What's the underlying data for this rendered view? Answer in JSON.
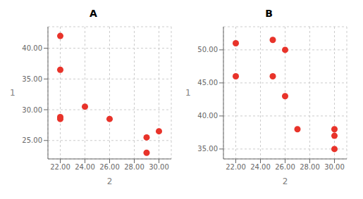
{
  "chart_data": [
    {
      "type": "scatter",
      "title": "A",
      "x": [
        22,
        22,
        22,
        22,
        24,
        26,
        29,
        29,
        30
      ],
      "values": [
        42.0,
        36.5,
        28.8,
        28.5,
        30.5,
        28.5,
        25.5,
        23.0,
        26.5
      ],
      "xlim": [
        21.0,
        31.0
      ],
      "ylim": [
        22.0,
        43.5
      ],
      "xticks": [
        {
          "value": 22,
          "label": "22.00"
        },
        {
          "value": 24,
          "label": "24.00"
        },
        {
          "value": 26,
          "label": "26.00"
        },
        {
          "value": 28,
          "label": "28.00"
        },
        {
          "value": 30,
          "label": "30.00"
        }
      ],
      "yticks": [
        {
          "value": 25.0,
          "label": "25.00"
        },
        {
          "value": 30.0,
          "label": "30.00"
        },
        {
          "value": 35.0,
          "label": "35.00"
        },
        {
          "value": 40.0,
          "label": "40.00"
        }
      ],
      "xlabel": "2",
      "ylabel": "1",
      "color": "#e8332a",
      "grid": true
    },
    {
      "type": "scatter",
      "title": "B",
      "x": [
        22,
        22,
        25,
        25,
        26,
        26,
        27,
        30,
        30,
        30
      ],
      "values": [
        51.0,
        46.0,
        51.5,
        46.0,
        50.0,
        43.0,
        38.0,
        38.0,
        37.0,
        35.0
      ],
      "xlim": [
        21.0,
        31.0
      ],
      "ylim": [
        33.5,
        53.5
      ],
      "xticks": [
        {
          "value": 22,
          "label": "22.00"
        },
        {
          "value": 24,
          "label": "24.00"
        },
        {
          "value": 26,
          "label": "26.00"
        },
        {
          "value": 28,
          "label": "28.00"
        },
        {
          "value": 30,
          "label": "30.00"
        }
      ],
      "yticks": [
        {
          "value": 35.0,
          "label": "35.00"
        },
        {
          "value": 40.0,
          "label": "40.00"
        },
        {
          "value": 45.0,
          "label": "45.00"
        },
        {
          "value": 50.0,
          "label": "50.00"
        }
      ],
      "xlabel": "2",
      "ylabel": "1",
      "color": "#e8332a",
      "grid": true
    }
  ]
}
